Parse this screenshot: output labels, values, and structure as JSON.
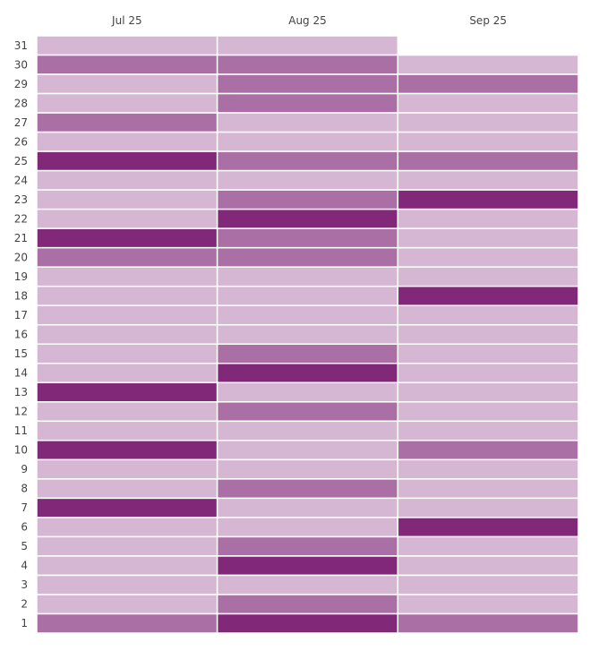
{
  "chart_data": {
    "type": "heatmap",
    "title": "",
    "columns": [
      "Jul 25",
      "Aug 25",
      "Sep 25"
    ],
    "rows": [
      31,
      30,
      29,
      28,
      27,
      26,
      25,
      24,
      23,
      22,
      21,
      20,
      19,
      18,
      17,
      16,
      15,
      14,
      13,
      12,
      11,
      10,
      9,
      8,
      7,
      6,
      5,
      4,
      3,
      2,
      1
    ],
    "level_colors": {
      "1": "#d5b7d4",
      "2": "#aa70a6",
      "3": "#822878"
    },
    "values": {
      "Jul 25": [
        1,
        2,
        1,
        1,
        2,
        1,
        3,
        1,
        1,
        1,
        3,
        2,
        1,
        1,
        1,
        1,
        1,
        1,
        3,
        1,
        1,
        3,
        1,
        1,
        3,
        1,
        1,
        1,
        1,
        1,
        2
      ],
      "Aug 25": [
        1,
        2,
        2,
        2,
        1,
        1,
        2,
        1,
        2,
        3,
        2,
        2,
        1,
        1,
        1,
        1,
        2,
        3,
        1,
        2,
        1,
        1,
        1,
        2,
        1,
        1,
        2,
        3,
        1,
        2,
        3
      ],
      "Sep 25": [
        null,
        1,
        2,
        1,
        1,
        1,
        2,
        1,
        3,
        1,
        1,
        1,
        1,
        3,
        1,
        1,
        1,
        1,
        1,
        1,
        1,
        2,
        1,
        1,
        1,
        3,
        1,
        1,
        1,
        1,
        2
      ]
    },
    "legend": "none",
    "grid": false
  }
}
